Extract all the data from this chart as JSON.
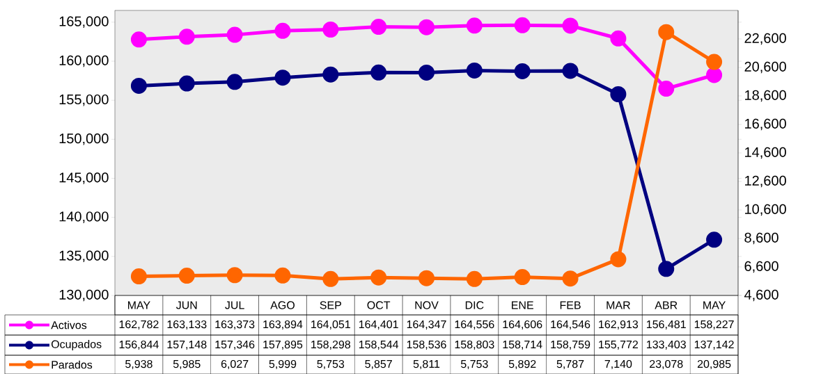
{
  "chart_data": {
    "type": "line",
    "categories": [
      "MAY",
      "JUN",
      "JUL",
      "AGO",
      "SEP",
      "OCT",
      "NOV",
      "DIC",
      "ENE",
      "FEB",
      "MAR",
      "ABR",
      "MAY"
    ],
    "series": [
      {
        "name": "Activos",
        "color": "#ff00ff",
        "values": [
          162782,
          163133,
          163373,
          163894,
          164051,
          164401,
          164347,
          164556,
          164606,
          164546,
          162913,
          156481,
          158227
        ],
        "value_labels": [
          "162,782",
          "163,133",
          "163,373",
          "163,894",
          "164,051",
          "164,401",
          "164,347",
          "164,556",
          "164,606",
          "164,546",
          "162,913",
          "156,481",
          "158,227"
        ]
      },
      {
        "name": "Ocupados",
        "color": "#000080",
        "values": [
          156844,
          157148,
          157346,
          157895,
          158298,
          158544,
          158536,
          158803,
          158714,
          158759,
          155772,
          133403,
          137142
        ],
        "value_labels": [
          "156,844",
          "157,148",
          "157,346",
          "157,895",
          "158,298",
          "158,544",
          "158,536",
          "158,803",
          "158,714",
          "158,759",
          "155,772",
          "133,403",
          "137,142"
        ]
      },
      {
        "name": "Parados",
        "color": "#ff6600",
        "axis": "y2",
        "values": [
          5938,
          5985,
          6027,
          5999,
          5753,
          5857,
          5811,
          5753,
          5892,
          5787,
          7140,
          23078,
          20985
        ],
        "value_labels": [
          "5,938",
          "5,985",
          "6,027",
          "5,999",
          "5,753",
          "5,857",
          "5,811",
          "5,753",
          "5,892",
          "5,787",
          "7,140",
          "23,078",
          "20,985"
        ]
      }
    ],
    "ylim": [
      130000,
      166500
    ],
    "yticks": [
      {
        "value": 130000,
        "label": "130,000"
      },
      {
        "value": 135000,
        "label": "135,000"
      },
      {
        "value": 140000,
        "label": "140,000"
      },
      {
        "value": 145000,
        "label": "145,000"
      },
      {
        "value": 150000,
        "label": "150,000"
      },
      {
        "value": 155000,
        "label": "155,000"
      },
      {
        "value": 160000,
        "label": "160,000"
      },
      {
        "value": 165000,
        "label": "165,000"
      }
    ],
    "y2lim": [
      4600,
      24600
    ],
    "y2ticks": [
      {
        "value": 4600,
        "label": "4,600"
      },
      {
        "value": 6600,
        "label": "6,600"
      },
      {
        "value": 8600,
        "label": "8,600"
      },
      {
        "value": 10600,
        "label": "10,600"
      },
      {
        "value": 12600,
        "label": "12,600"
      },
      {
        "value": 14600,
        "label": "14,600"
      },
      {
        "value": 16600,
        "label": "16,600"
      },
      {
        "value": 18600,
        "label": "18,600"
      },
      {
        "value": 20600,
        "label": "20,600"
      },
      {
        "value": 22600,
        "label": "22,600"
      }
    ],
    "legend": "bottom",
    "marker": "circle",
    "line_style": "solid"
  }
}
